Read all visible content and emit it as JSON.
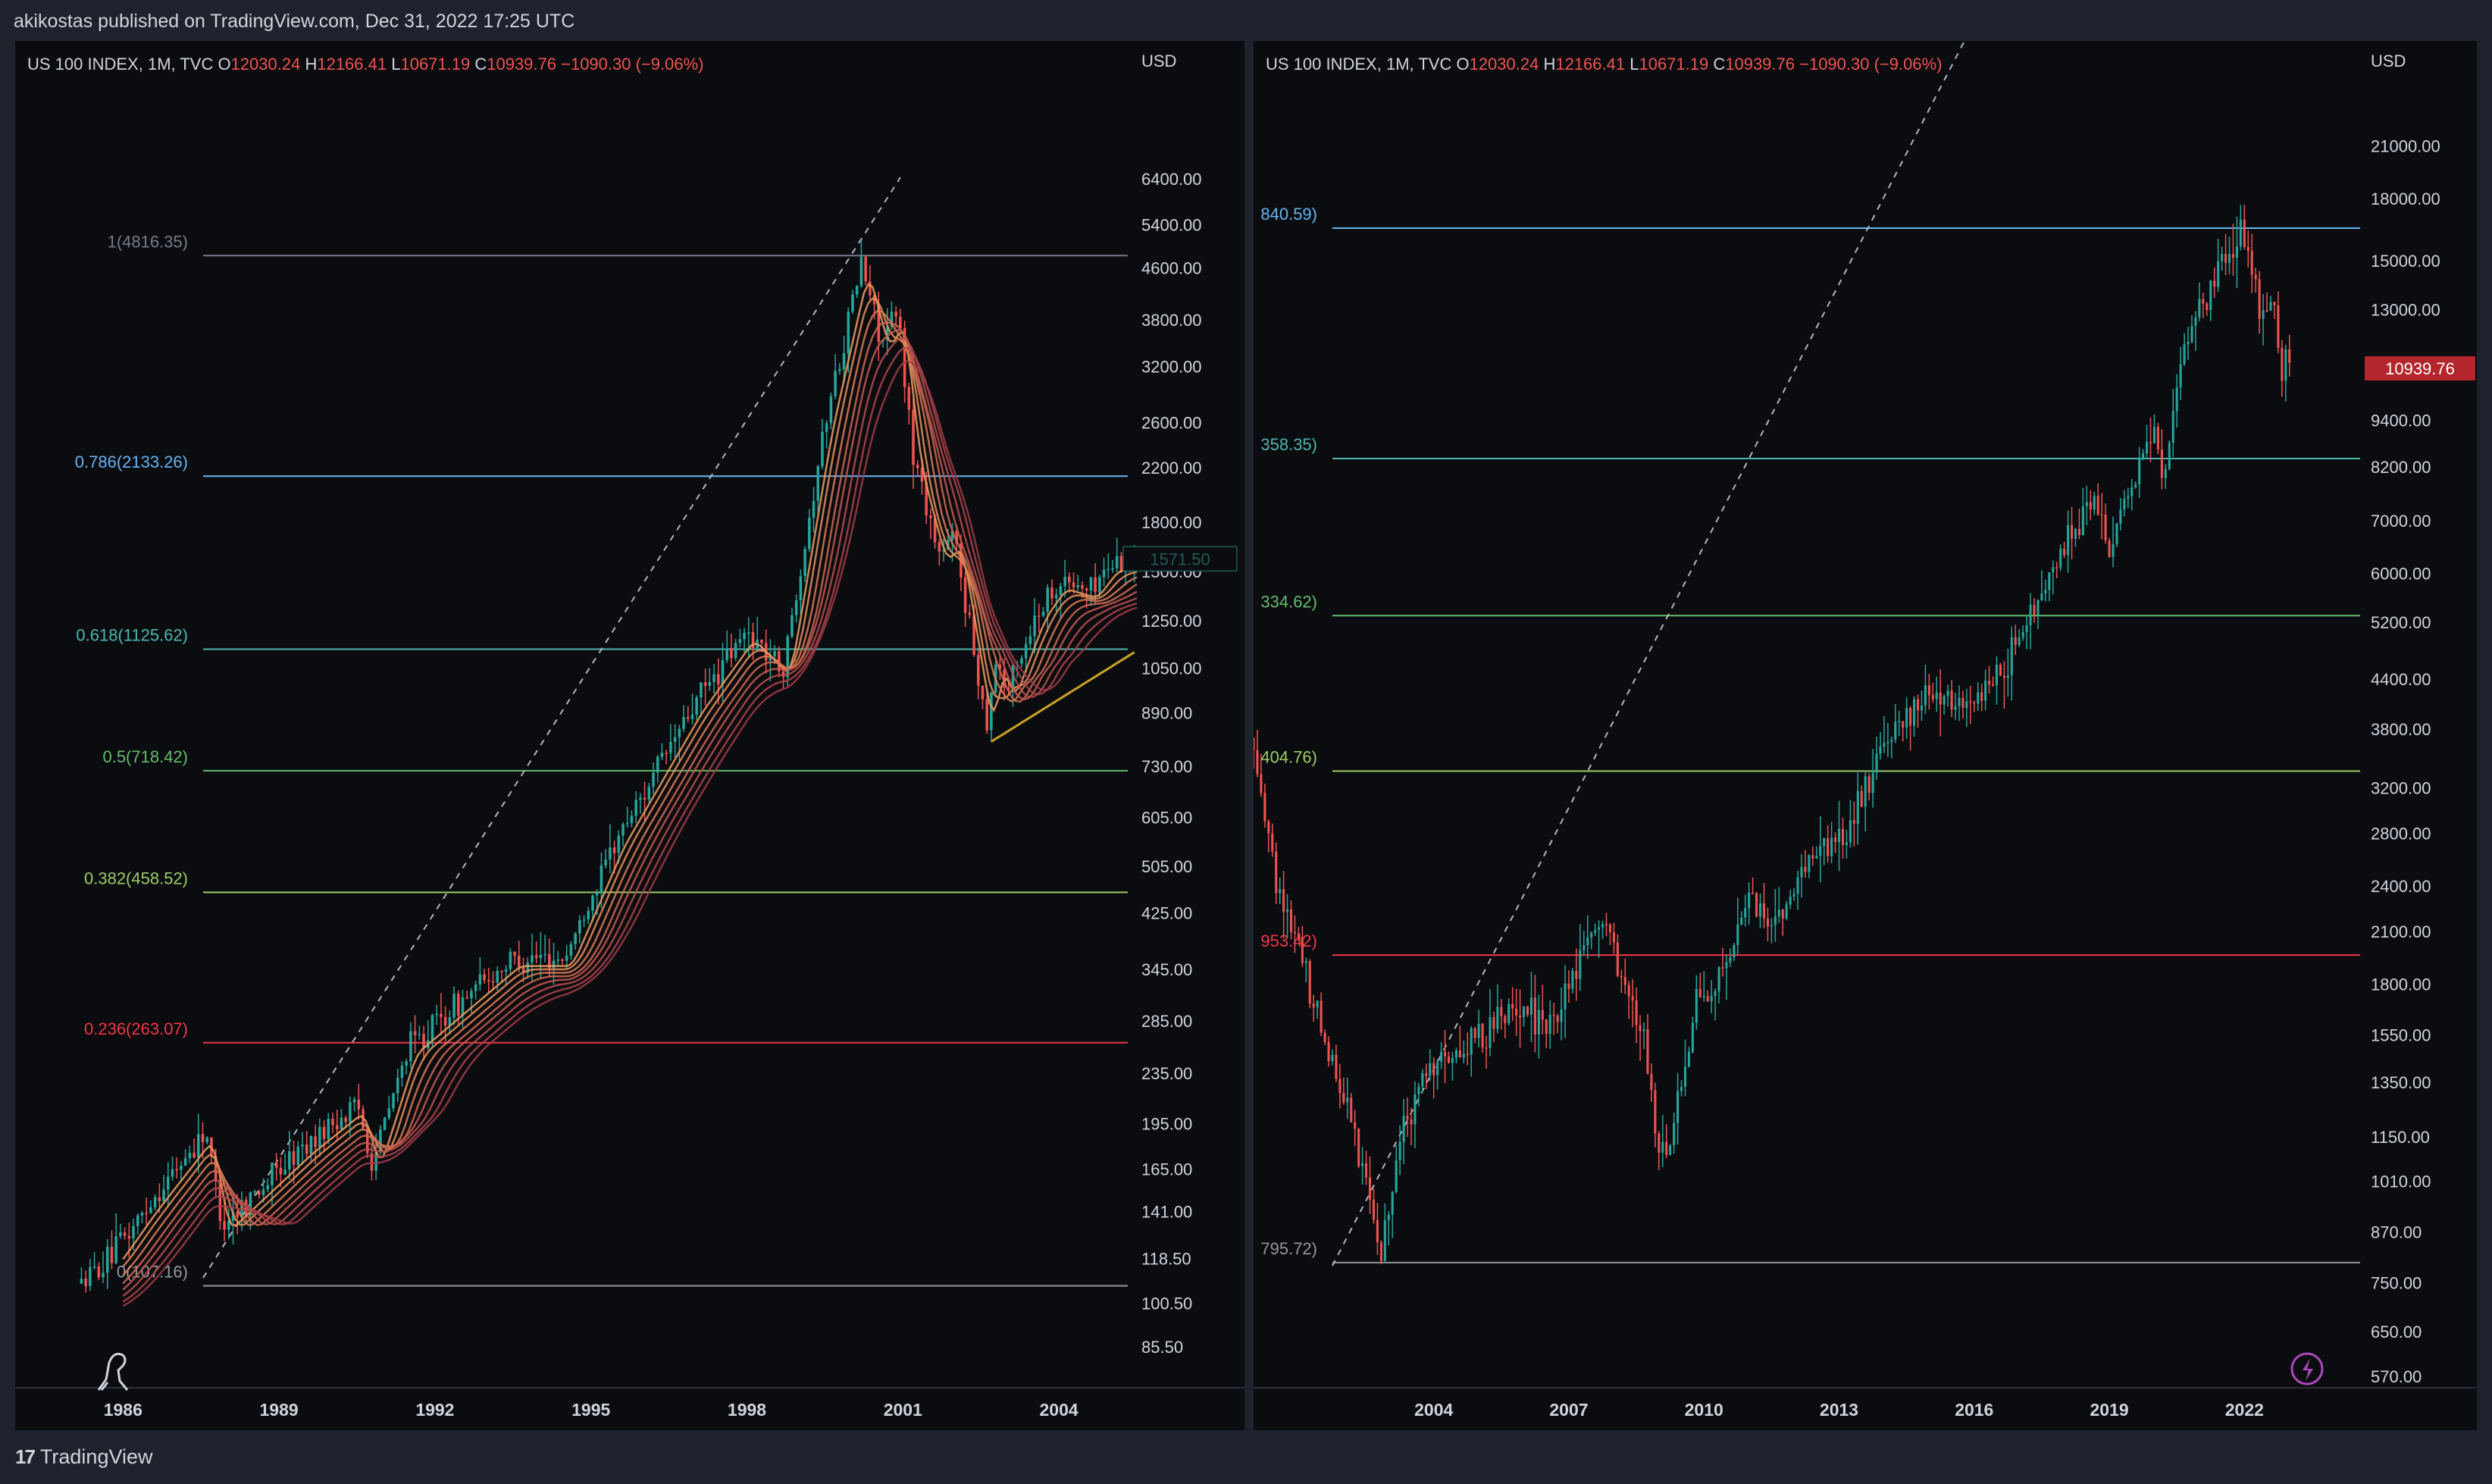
{
  "header": {
    "publisher": "akikostas published on TradingView.com, Dec 31, 2022 17:25 UTC"
  },
  "footer": {
    "brand": "TradingView",
    "logo_mark": "17"
  },
  "colors": {
    "bg": "#0b0c10",
    "frame": "#1e222d",
    "up": "#26a69a",
    "down": "#ef5350",
    "text": "#d1d4dc",
    "muted": "#9598a1",
    "price_badge": "#b2262c"
  },
  "chart_data": [
    {
      "type": "candlestick",
      "panel": "left",
      "title": "US 100 INDEX, 1M, TVC",
      "ohlc": {
        "o_label": "O",
        "o": "12030.24",
        "h_label": "H",
        "h": "12166.41",
        "l_label": "L",
        "l": "10671.19",
        "c_label": "C",
        "c": "10939.76",
        "change": "−1090.30 (−9.06%)"
      },
      "currency": "USD",
      "scale": "log",
      "ylim": [
        75,
        9000
      ],
      "xlim": [
        1984.8,
        2005.5
      ],
      "y_ticks": [
        "6400.00",
        "5400.00",
        "4600.00",
        "3800.00",
        "3200.00",
        "2600.00",
        "2200.00",
        "1800.00",
        "1500.00",
        "1250.00",
        "1050.00",
        "890.00",
        "730.00",
        "605.00",
        "505.00",
        "425.00",
        "345.00",
        "285.00",
        "235.00",
        "195.00",
        "165.00",
        "141.00",
        "118.50",
        "100.50",
        "85.50"
      ],
      "x_ticks": [
        "1986",
        "1989",
        "1992",
        "1995",
        "1998",
        "2001",
        "2004"
      ],
      "fib_levels": [
        {
          "label": "1(4816.35)",
          "value": 4816.35,
          "color": "#787b86"
        },
        {
          "label": "0.786(2133.26)",
          "value": 2133.26,
          "color": "#64b5f6"
        },
        {
          "label": "0.618(1125.62)",
          "value": 1125.62,
          "color": "#4db6ac"
        },
        {
          "label": "0.5(718.42)",
          "value": 718.42,
          "color": "#66bb6a"
        },
        {
          "label": "0.382(458.52)",
          "value": 458.52,
          "color": "#9ccc65"
        },
        {
          "label": "0.236(263.07)",
          "value": 263.07,
          "color": "#f23645"
        },
        {
          "label": "0(107.16)",
          "value": 107.16,
          "color": "#9598a1"
        }
      ],
      "price_tag": "1571.50",
      "path": [
        [
          1985.2,
          108
        ],
        [
          1985.8,
          120
        ],
        [
          1986.5,
          145
        ],
        [
          1987.6,
          190
        ],
        [
          1987.9,
          135
        ],
        [
          1989.5,
          180
        ],
        [
          1990.5,
          210
        ],
        [
          1990.8,
          170
        ],
        [
          1991.5,
          260
        ],
        [
          1993.5,
          360
        ],
        [
          1994.5,
          360
        ],
        [
          1995.5,
          560
        ],
        [
          1997.0,
          920
        ],
        [
          1998.0,
          1200
        ],
        [
          1998.7,
          1050
        ],
        [
          1999.5,
          2600
        ],
        [
          2000.2,
          4700
        ],
        [
          2000.6,
          3500
        ],
        [
          2000.9,
          3900
        ],
        [
          2001.2,
          2300
        ],
        [
          2001.7,
          1600
        ],
        [
          2002.0,
          1700
        ],
        [
          2002.6,
          860
        ],
        [
          2002.8,
          1100
        ],
        [
          2003.0,
          960
        ],
        [
          2003.6,
          1300
        ],
        [
          2004.0,
          1450
        ],
        [
          2004.6,
          1400
        ],
        [
          2005.0,
          1550
        ],
        [
          2005.5,
          1570
        ]
      ]
    },
    {
      "type": "candlestick",
      "panel": "right",
      "title": "US 100 INDEX, 1M, TVC",
      "ohlc": {
        "o_label": "O",
        "o": "12030.24",
        "h_label": "H",
        "h": "12166.41",
        "l_label": "L",
        "l": "10671.19",
        "c_label": "C",
        "c": "10939.76",
        "change": "−1090.30 (−9.06%)"
      },
      "currency": "USD",
      "scale": "log",
      "ylim": [
        560,
        25000
      ],
      "xlim": [
        2000.0,
        2024.3
      ],
      "y_ticks": [
        "21000.00",
        "18000.00",
        "15000.00",
        "13000.00",
        "9400.00",
        "8200.00",
        "7000.00",
        "6000.00",
        "5200.00",
        "4400.00",
        "3800.00",
        "3200.00",
        "2800.00",
        "2400.00",
        "2100.00",
        "1800.00",
        "1550.00",
        "1350.00",
        "1150.00",
        "1010.00",
        "870.00",
        "750.00",
        "650.00",
        "570.00"
      ],
      "x_ticks": [
        "2004",
        "2007",
        "2010",
        "2013",
        "2016",
        "2019",
        "2022"
      ],
      "fib_levels": [
        {
          "label": "840.59)",
          "value": 16500,
          "color": "#64b5f6"
        },
        {
          "label": "358.35)",
          "value": 8400,
          "color": "#4db6ac"
        },
        {
          "label": "334.62)",
          "value": 5300,
          "color": "#66bb6a"
        },
        {
          "label": "404.76)",
          "value": 3360,
          "color": "#9ccc65"
        },
        {
          "label": "953.42)",
          "value": 1960,
          "color": "#f23645"
        },
        {
          "label": "795.72)",
          "value": 795.72,
          "color": "#9598a1"
        }
      ],
      "price_tag": "10939.76",
      "path": [
        [
          2000.0,
          3700
        ],
        [
          2000.5,
          2400
        ],
        [
          2001.0,
          2000
        ],
        [
          2001.5,
          1600
        ],
        [
          2002.0,
          1300
        ],
        [
          2002.5,
          1000
        ],
        [
          2002.8,
          810
        ],
        [
          2003.2,
          1100
        ],
        [
          2003.8,
          1400
        ],
        [
          2004.5,
          1450
        ],
        [
          2005.0,
          1550
        ],
        [
          2006.0,
          1700
        ],
        [
          2006.5,
          1550
        ],
        [
          2007.0,
          1800
        ],
        [
          2007.8,
          2200
        ],
        [
          2008.2,
          1800
        ],
        [
          2008.7,
          1500
        ],
        [
          2009.0,
          1100
        ],
        [
          2009.2,
          1050
        ],
        [
          2009.8,
          1700
        ],
        [
          2010.5,
          1850
        ],
        [
          2011.0,
          2300
        ],
        [
          2011.6,
          2100
        ],
        [
          2012.5,
          2700
        ],
        [
          2013.0,
          2700
        ],
        [
          2014.0,
          3600
        ],
        [
          2015.0,
          4300
        ],
        [
          2015.6,
          4100
        ],
        [
          2016.0,
          4200
        ],
        [
          2016.5,
          4400
        ],
        [
          2017.0,
          5000
        ],
        [
          2018.0,
          6500
        ],
        [
          2018.7,
          7600
        ],
        [
          2018.95,
          6300
        ],
        [
          2019.5,
          7800
        ],
        [
          2020.0,
          9000
        ],
        [
          2020.2,
          7500
        ],
        [
          2020.6,
          11500
        ],
        [
          2021.0,
          13000
        ],
        [
          2021.8,
          16000
        ],
        [
          2021.95,
          16500
        ],
        [
          2022.4,
          12500
        ],
        [
          2022.7,
          13500
        ],
        [
          2022.8,
          11000
        ],
        [
          2022.95,
          11500
        ],
        [
          2023.0,
          10940
        ]
      ]
    }
  ]
}
